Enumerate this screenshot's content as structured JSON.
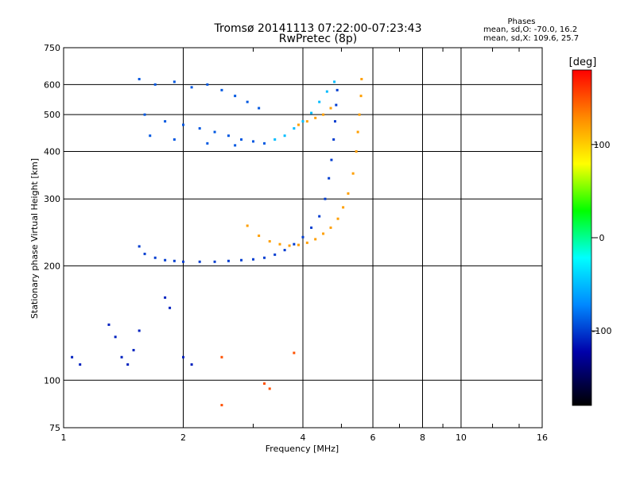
{
  "header": {
    "title_line1": "Tromsø 20141113 07:22:00-07:23:43",
    "title_line2": "RwPretec (8p)"
  },
  "phases": {
    "title": "Phases",
    "line_o": "mean, sd,O: -70.0, 16.2",
    "line_x": "mean, sd,X: 109.6, 25.7"
  },
  "colorbar": {
    "label": "[deg]",
    "ticks": [
      "100",
      "0",
      "-100"
    ]
  },
  "chart_data": {
    "type": "scatter",
    "title": "Tromsø 20141113 07:22:00-07:23:43",
    "subtitle": "RwPretec (8p)",
    "xlabel": "Frequency [MHz]",
    "ylabel": "Stationary phase Virtual Height [km]",
    "xscale": "log",
    "yscale": "log",
    "xlim": [
      1,
      16
    ],
    "ylim": [
      75,
      750
    ],
    "x_ticks": [
      "1",
      "2",
      "4",
      "6",
      "8",
      "10",
      "16"
    ],
    "y_ticks": [
      "75",
      "100",
      "200",
      "300",
      "400",
      "500",
      "600",
      "750"
    ],
    "grid": true,
    "color_scale": {
      "label": "[deg]",
      "range": [
        -180,
        180
      ],
      "ticks": [
        100,
        0,
        -100
      ],
      "colormap": "rainbow"
    },
    "traces": [
      {
        "description": "O-mode F-layer trace",
        "phase": -100,
        "points": [
          [
            1.55,
            225
          ],
          [
            1.6,
            215
          ],
          [
            1.7,
            210
          ],
          [
            1.8,
            207
          ],
          [
            1.9,
            206
          ],
          [
            2.0,
            205
          ],
          [
            2.2,
            205
          ],
          [
            2.4,
            205
          ],
          [
            2.6,
            206
          ],
          [
            2.8,
            207
          ],
          [
            3.0,
            208
          ],
          [
            3.2,
            210
          ],
          [
            3.4,
            214
          ],
          [
            3.6,
            220
          ],
          [
            3.8,
            228
          ],
          [
            4.0,
            238
          ],
          [
            4.2,
            252
          ],
          [
            4.4,
            270
          ],
          [
            4.55,
            300
          ],
          [
            4.65,
            340
          ],
          [
            4.72,
            380
          ],
          [
            4.78,
            430
          ],
          [
            4.82,
            480
          ],
          [
            4.85,
            530
          ],
          [
            4.88,
            580
          ]
        ]
      },
      {
        "description": "X-mode F-layer trace",
        "phase": 120,
        "points": [
          [
            2.9,
            255
          ],
          [
            3.1,
            240
          ],
          [
            3.3,
            232
          ],
          [
            3.5,
            228
          ],
          [
            3.7,
            226
          ],
          [
            3.9,
            227
          ],
          [
            4.1,
            230
          ],
          [
            4.3,
            235
          ],
          [
            4.5,
            243
          ],
          [
            4.7,
            252
          ],
          [
            4.9,
            266
          ],
          [
            5.05,
            285
          ],
          [
            5.2,
            310
          ],
          [
            5.35,
            350
          ],
          [
            5.45,
            400
          ],
          [
            5.5,
            450
          ],
          [
            5.55,
            500
          ],
          [
            5.6,
            560
          ],
          [
            5.62,
            620
          ]
        ]
      },
      {
        "description": "Spread F echoes",
        "phase": -90,
        "points": [
          [
            1.55,
            620
          ],
          [
            1.7,
            600
          ],
          [
            1.9,
            610
          ],
          [
            2.1,
            590
          ],
          [
            2.3,
            600
          ],
          [
            2.5,
            580
          ],
          [
            2.7,
            560
          ],
          [
            2.9,
            540
          ],
          [
            3.1,
            520
          ],
          [
            1.6,
            500
          ],
          [
            1.8,
            480
          ],
          [
            2.0,
            470
          ],
          [
            2.2,
            460
          ],
          [
            2.4,
            450
          ],
          [
            2.6,
            440
          ],
          [
            2.8,
            430
          ],
          [
            3.0,
            425
          ],
          [
            3.2,
            420
          ],
          [
            1.65,
            440
          ],
          [
            1.9,
            430
          ],
          [
            2.3,
            420
          ],
          [
            2.7,
            415
          ]
        ]
      },
      {
        "description": "Upper O-mode trace",
        "phase": -50,
        "points": [
          [
            3.4,
            430
          ],
          [
            3.6,
            440
          ],
          [
            3.8,
            460
          ],
          [
            4.0,
            480
          ],
          [
            4.2,
            505
          ],
          [
            4.4,
            540
          ],
          [
            4.6,
            575
          ],
          [
            4.8,
            610
          ]
        ]
      },
      {
        "description": "Upper X-mode trace",
        "phase": 120,
        "points": [
          [
            3.9,
            470
          ],
          [
            4.1,
            480
          ],
          [
            4.3,
            490
          ],
          [
            4.5,
            500
          ],
          [
            4.7,
            520
          ]
        ]
      },
      {
        "description": "Low-altitude echoes",
        "phase": -110,
        "points": [
          [
            1.3,
            140
          ],
          [
            1.35,
            130
          ],
          [
            1.4,
            115
          ],
          [
            1.45,
            110
          ],
          [
            1.5,
            120
          ],
          [
            1.55,
            135
          ],
          [
            1.8,
            165
          ],
          [
            1.85,
            155
          ],
          [
            2.0,
            115
          ],
          [
            2.1,
            110
          ],
          [
            1.05,
            115
          ],
          [
            1.1,
            110
          ]
        ]
      },
      {
        "description": "Scattered echoes",
        "phase": 150,
        "points": [
          [
            2.5,
            115
          ],
          [
            3.2,
            98
          ],
          [
            3.3,
            95
          ],
          [
            2.5,
            86
          ],
          [
            3.8,
            118
          ]
        ]
      }
    ]
  }
}
